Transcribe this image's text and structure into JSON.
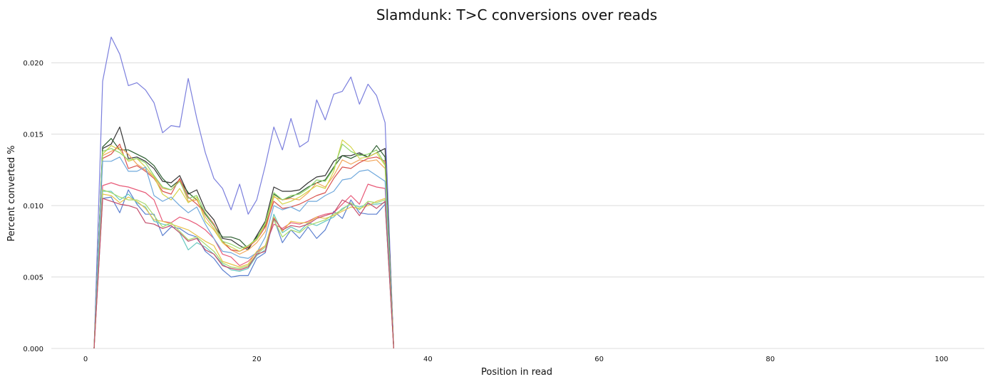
{
  "chart_data": {
    "type": "line",
    "title": "Slamdunk: T>C conversions over reads",
    "xlabel": "Position in read",
    "ylabel": "Percent converted %",
    "xlim": [
      -4,
      105
    ],
    "ylim": [
      0,
      0.0225
    ],
    "x_ticks": [
      0,
      20,
      40,
      60,
      80,
      100
    ],
    "x_tick_labels": [
      "0",
      "20",
      "40",
      "60",
      "80",
      "100"
    ],
    "y_ticks": [
      0,
      0.005,
      0.01,
      0.015,
      0.02
    ],
    "y_tick_labels": [
      "0.000",
      "0.005",
      "0.010",
      "0.015",
      "0.020"
    ],
    "grid": "horizontal",
    "x": [
      1,
      2,
      3,
      4,
      5,
      6,
      7,
      8,
      9,
      10,
      11,
      12,
      13,
      14,
      15,
      16,
      17,
      18,
      19,
      20,
      21,
      22,
      23,
      24,
      25,
      26,
      27,
      28,
      29,
      30,
      31,
      32,
      33,
      34,
      35,
      36
    ],
    "series": [
      {
        "color": "#7b7fdd",
        "values": [
          0.0,
          0.0187,
          0.0218,
          0.0206,
          0.0184,
          0.0186,
          0.0181,
          0.0172,
          0.0151,
          0.0156,
          0.0155,
          0.0189,
          0.0161,
          0.0137,
          0.0119,
          0.0112,
          0.0097,
          0.0115,
          0.0094,
          0.0104,
          0.0128,
          0.0155,
          0.0139,
          0.0161,
          0.0141,
          0.0145,
          0.0174,
          0.016,
          0.0178,
          0.018,
          0.019,
          0.0171,
          0.0185,
          0.0177,
          0.0158,
          0.0
        ]
      },
      {
        "color": "#333333",
        "values": [
          0.0,
          0.014,
          0.0143,
          0.0155,
          0.0133,
          0.0134,
          0.0131,
          0.0126,
          0.0117,
          0.0116,
          0.0121,
          0.0108,
          0.0111,
          0.0097,
          0.009,
          0.0077,
          0.0076,
          0.0072,
          0.0069,
          0.0079,
          0.0089,
          0.0113,
          0.011,
          0.011,
          0.0111,
          0.0116,
          0.012,
          0.0121,
          0.0131,
          0.0135,
          0.0135,
          0.0137,
          0.0134,
          0.0137,
          0.014,
          0.0
        ]
      },
      {
        "color": "#2b5d2f",
        "values": [
          0.0,
          0.0141,
          0.0147,
          0.0139,
          0.0139,
          0.0136,
          0.0133,
          0.0128,
          0.0119,
          0.0113,
          0.0118,
          0.0109,
          0.0104,
          0.0094,
          0.0086,
          0.0078,
          0.0078,
          0.0076,
          0.007,
          0.0078,
          0.0086,
          0.0108,
          0.0104,
          0.0106,
          0.0109,
          0.0113,
          0.0116,
          0.0118,
          0.0127,
          0.0135,
          0.0133,
          0.0136,
          0.0134,
          0.0142,
          0.0134,
          0.0
        ]
      },
      {
        "color": "#f2a65a",
        "values": [
          0.0,
          0.0135,
          0.0138,
          0.0141,
          0.0136,
          0.0129,
          0.0125,
          0.012,
          0.0112,
          0.0111,
          0.0118,
          0.0103,
          0.0104,
          0.0092,
          0.0084,
          0.0074,
          0.0069,
          0.0066,
          0.0069,
          0.0074,
          0.0082,
          0.0106,
          0.0104,
          0.0105,
          0.0104,
          0.0109,
          0.0116,
          0.0113,
          0.0121,
          0.0132,
          0.0129,
          0.0132,
          0.0131,
          0.0132,
          0.0126,
          0.0
        ]
      },
      {
        "color": "#d9534f",
        "values": [
          0.0,
          0.0133,
          0.0136,
          0.0143,
          0.0126,
          0.0128,
          0.0124,
          0.0119,
          0.011,
          0.0108,
          0.0119,
          0.0106,
          0.0101,
          0.0095,
          0.0087,
          0.0075,
          0.0069,
          0.0068,
          0.0071,
          0.0076,
          0.0085,
          0.0103,
          0.0098,
          0.0099,
          0.0101,
          0.0104,
          0.0107,
          0.0109,
          0.0119,
          0.0127,
          0.0126,
          0.013,
          0.0133,
          0.0134,
          0.0131,
          0.0
        ]
      },
      {
        "color": "#d4d44a",
        "values": [
          0.0,
          0.0136,
          0.0142,
          0.0139,
          0.0131,
          0.0133,
          0.0127,
          0.012,
          0.0108,
          0.0104,
          0.0112,
          0.0102,
          0.0106,
          0.0089,
          0.0083,
          0.0074,
          0.0071,
          0.0068,
          0.0072,
          0.0076,
          0.0087,
          0.0107,
          0.0101,
          0.0103,
          0.0106,
          0.011,
          0.0114,
          0.0112,
          0.0124,
          0.0146,
          0.0141,
          0.0133,
          0.0134,
          0.0137,
          0.0128,
          0.0
        ]
      },
      {
        "color": "#8fd46a",
        "values": [
          0.0,
          0.0138,
          0.014,
          0.0137,
          0.0132,
          0.0133,
          0.013,
          0.0121,
          0.0113,
          0.0111,
          0.0117,
          0.0105,
          0.0107,
          0.0095,
          0.0086,
          0.0075,
          0.0073,
          0.007,
          0.0072,
          0.0077,
          0.0088,
          0.0109,
          0.0104,
          0.0107,
          0.0108,
          0.0112,
          0.0118,
          0.0117,
          0.0126,
          0.0143,
          0.0138,
          0.0135,
          0.0136,
          0.0139,
          0.0129,
          0.0
        ]
      },
      {
        "color": "#e85a78",
        "values": [
          0.0,
          0.0114,
          0.0116,
          0.0114,
          0.0113,
          0.0111,
          0.0109,
          0.0104,
          0.0089,
          0.0088,
          0.0092,
          0.009,
          0.0087,
          0.0083,
          0.0077,
          0.0066,
          0.0064,
          0.0058,
          0.0061,
          0.0067,
          0.0072,
          0.0087,
          0.0084,
          0.0088,
          0.0087,
          0.0089,
          0.0092,
          0.0094,
          0.0095,
          0.0101,
          0.0107,
          0.0101,
          0.0115,
          0.0113,
          0.0112,
          0.0
        ]
      },
      {
        "color": "#6fa8dc",
        "values": [
          0.0,
          0.0131,
          0.0131,
          0.0134,
          0.0124,
          0.0124,
          0.0127,
          0.0107,
          0.0103,
          0.0106,
          0.01,
          0.0095,
          0.0099,
          0.0087,
          0.0077,
          0.0068,
          0.0067,
          0.0064,
          0.0063,
          0.0067,
          0.0078,
          0.01,
          0.0097,
          0.0099,
          0.0096,
          0.0103,
          0.0103,
          0.0107,
          0.011,
          0.0118,
          0.0119,
          0.0124,
          0.0125,
          0.0121,
          0.0117,
          0.0
        ]
      },
      {
        "color": "#5b7fcf",
        "values": [
          0.0,
          0.0105,
          0.0106,
          0.0095,
          0.0111,
          0.0101,
          0.0094,
          0.0094,
          0.0079,
          0.0085,
          0.0084,
          0.008,
          0.0078,
          0.0068,
          0.0063,
          0.0055,
          0.005,
          0.0051,
          0.0051,
          0.0063,
          0.0067,
          0.0091,
          0.0074,
          0.0083,
          0.0077,
          0.0085,
          0.0077,
          0.0083,
          0.0096,
          0.0091,
          0.0104,
          0.0095,
          0.0094,
          0.0094,
          0.0101,
          0.0
        ]
      },
      {
        "color": "#67c8c0",
        "values": [
          0.0,
          0.011,
          0.011,
          0.0104,
          0.0108,
          0.0102,
          0.0099,
          0.0089,
          0.0087,
          0.0086,
          0.0081,
          0.0069,
          0.0074,
          0.0071,
          0.0066,
          0.0059,
          0.0055,
          0.0054,
          0.0056,
          0.0065,
          0.0069,
          0.0094,
          0.0081,
          0.0085,
          0.0082,
          0.0088,
          0.0086,
          0.0089,
          0.0092,
          0.0098,
          0.0101,
          0.0099,
          0.0101,
          0.0101,
          0.0102,
          0.0
        ]
      },
      {
        "color": "#e8c24a",
        "values": [
          0.0,
          0.0108,
          0.0107,
          0.0102,
          0.0106,
          0.0103,
          0.0098,
          0.009,
          0.0089,
          0.0087,
          0.0085,
          0.0083,
          0.0079,
          0.0075,
          0.0072,
          0.0061,
          0.0059,
          0.0057,
          0.0059,
          0.0068,
          0.0072,
          0.0092,
          0.0082,
          0.0089,
          0.0088,
          0.0088,
          0.0092,
          0.0091,
          0.0093,
          0.0096,
          0.0099,
          0.0098,
          0.01,
          0.0103,
          0.0105,
          0.0
        ]
      },
      {
        "color": "#a6d96a",
        "values": [
          0.0,
          0.0111,
          0.0109,
          0.0106,
          0.0104,
          0.0104,
          0.0101,
          0.0093,
          0.0085,
          0.0088,
          0.0082,
          0.0076,
          0.0078,
          0.0073,
          0.0068,
          0.006,
          0.0057,
          0.0056,
          0.0058,
          0.0066,
          0.0071,
          0.009,
          0.0078,
          0.0083,
          0.0081,
          0.0086,
          0.0088,
          0.009,
          0.0094,
          0.0097,
          0.0102,
          0.0097,
          0.0103,
          0.0102,
          0.0104,
          0.0
        ]
      },
      {
        "color": "#c44d6b",
        "values": [
          0.0,
          0.0105,
          0.0103,
          0.0101,
          0.01,
          0.0098,
          0.0088,
          0.0087,
          0.0084,
          0.0086,
          0.0081,
          0.0075,
          0.0077,
          0.0069,
          0.0066,
          0.0058,
          0.0056,
          0.0055,
          0.0057,
          0.0066,
          0.0068,
          0.0091,
          0.0083,
          0.0086,
          0.0085,
          0.0087,
          0.0091,
          0.0093,
          0.0095,
          0.0104,
          0.0101,
          0.0093,
          0.0102,
          0.0098,
          0.0103,
          0.0
        ]
      }
    ]
  }
}
